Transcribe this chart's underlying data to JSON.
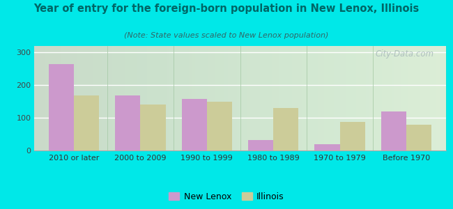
{
  "title": "Year of entry for the foreign-born population in New Lenox, Illinois",
  "subtitle": "(Note: State values scaled to New Lenox population)",
  "categories": [
    "2010 or later",
    "2000 to 2009",
    "1990 to 1999",
    "1980 to 1989",
    "1970 to 1979",
    "Before 1970"
  ],
  "new_lenox": [
    265,
    168,
    158,
    33,
    20,
    120
  ],
  "illinois": [
    168,
    140,
    150,
    130,
    87,
    78
  ],
  "new_lenox_color": "#cc99cc",
  "illinois_color": "#cccc99",
  "background_outer": "#00e8e8",
  "background_inner": "#eef5e8",
  "title_color": "#006666",
  "subtitle_color": "#336666",
  "ylim": [
    0,
    320
  ],
  "yticks": [
    0,
    100,
    200,
    300
  ],
  "bar_width": 0.38,
  "legend_labels": [
    "New Lenox",
    "Illinois"
  ],
  "watermark": "City-Data.com"
}
